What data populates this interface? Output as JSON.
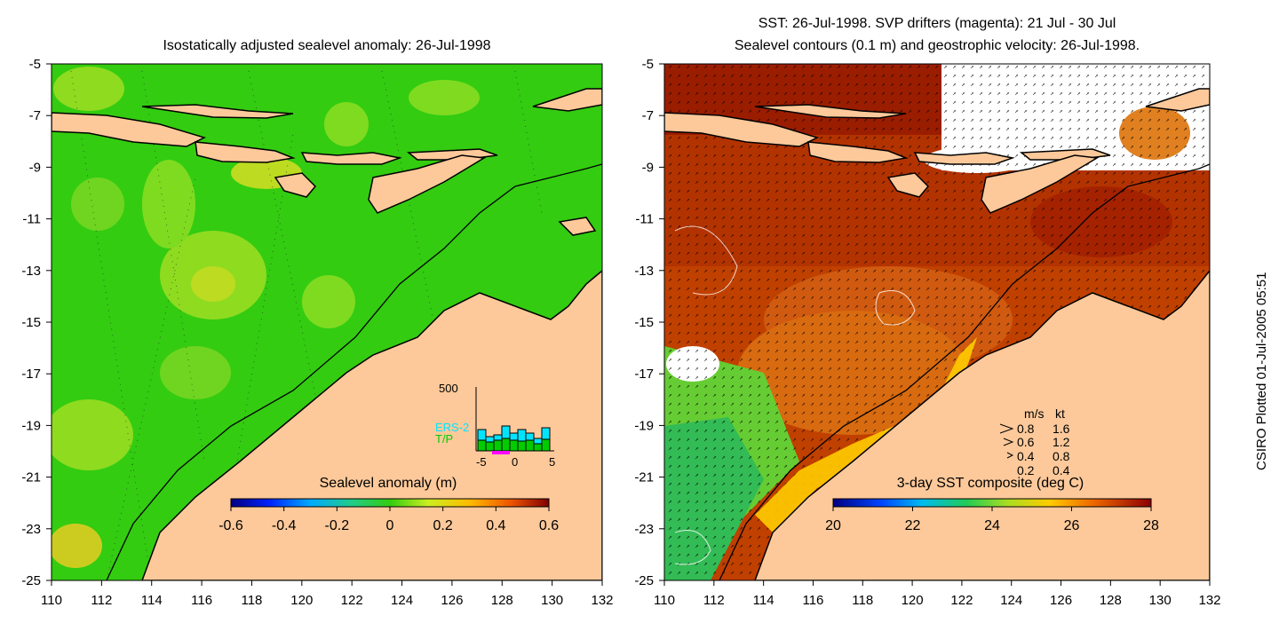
{
  "left_panel": {
    "title": "Isostatically adjusted sealevel anomaly: 26-Jul-1998",
    "x_ticks": [
      "110",
      "112",
      "114",
      "116",
      "118",
      "120",
      "122",
      "124",
      "126",
      "128",
      "130",
      "132"
    ],
    "y_ticks": [
      "-5",
      "-7",
      "-9",
      "-11",
      "-13",
      "-15",
      "-17",
      "-19",
      "-21",
      "-23",
      "-25"
    ],
    "colorbar": {
      "label": "Sealevel anomaly (m)",
      "ticks": [
        "-0.6",
        "-0.4",
        "-0.2",
        "0",
        "0.2",
        "0.4",
        "0.6"
      ],
      "range": [
        -0.6,
        0.6
      ]
    },
    "inset": {
      "y_max_label": "500",
      "x_ticks": [
        "-5",
        "0",
        "5"
      ],
      "legend": [
        "ERS-2",
        "T/P"
      ],
      "ers2_color": "#00e5ff",
      "tp_color": "#00cc00"
    },
    "land_color": "#fdc99a",
    "sea_color": "#33cc11"
  },
  "right_panel": {
    "title_line1": "SST: 26-Jul-1998. SVP drifters (magenta): 21 Jul - 30 Jul",
    "title_line2": "Sealevel contours (0.1 m) and geostrophic velocity: 26-Jul-1998.",
    "x_ticks": [
      "110",
      "112",
      "114",
      "116",
      "118",
      "120",
      "122",
      "124",
      "126",
      "128",
      "130",
      "132"
    ],
    "y_ticks": [
      "-5",
      "-7",
      "-9",
      "-11",
      "-13",
      "-15",
      "-17",
      "-19",
      "-21",
      "-23",
      "-25"
    ],
    "colorbar": {
      "label": "3-day SST composite (deg C)",
      "ticks": [
        "20",
        "22",
        "24",
        "26",
        "28"
      ],
      "range": [
        20,
        28
      ]
    },
    "velocity_legend": {
      "header_ms": "m/s",
      "header_kt": "kt",
      "rows": [
        {
          "ms": "0.8",
          "kt": "1.6"
        },
        {
          "ms": "0.6",
          "kt": "1.2"
        },
        {
          "ms": "0.4",
          "kt": "0.8"
        },
        {
          "ms": "0.2",
          "kt": "0.4"
        }
      ]
    },
    "land_color": "#fdc99a"
  },
  "credit": "CSIRO Plotted 01-Jul-2005 05:51"
}
